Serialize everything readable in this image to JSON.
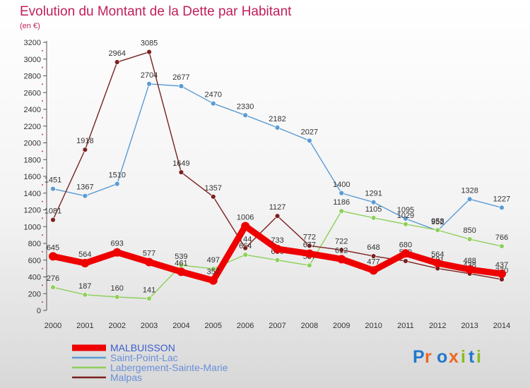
{
  "chart_data": {
    "type": "line",
    "title": "Evolution du Montant de la Dette par Habitant",
    "subtitle": "(en €)",
    "x": [
      "2000",
      "2001",
      "2002",
      "2003",
      "2004",
      "2005",
      "2006",
      "2007",
      "2008",
      "2009",
      "2010",
      "2011",
      "2012",
      "2013",
      "2014"
    ],
    "ylim": [
      0,
      3200
    ],
    "yticks": [
      0,
      200,
      400,
      600,
      800,
      1000,
      1200,
      1400,
      1600,
      1800,
      2000,
      2200,
      2400,
      2600,
      2800,
      3000,
      3200
    ],
    "grid": false,
    "legend_position": "bottom-left",
    "series": [
      {
        "name": "MALBUISSON",
        "color": "#ee0000",
        "values": [
          645,
          564,
          693,
          577,
          461,
          357,
          1006,
          733,
          677,
          612,
          477,
          680,
          564,
          488,
          437
        ]
      },
      {
        "name": "Saint-Point-Lac",
        "color": "#5b9bd5",
        "values": [
          1451,
          1367,
          1510,
          2704,
          2677,
          2470,
          2330,
          2182,
          2027,
          1400,
          1291,
          1095,
          952,
          1328,
          1227
        ]
      },
      {
        "name": "Labergement-Sainte-Marie",
        "color": "#8ed05a",
        "values": [
          276,
          187,
          160,
          141,
          539,
          497,
          664,
          600,
          537,
          1186,
          1105,
          1029,
          958,
          850,
          766
        ]
      },
      {
        "name": "Malpas",
        "color": "#7b2020",
        "values": [
          1081,
          1918,
          2964,
          3085,
          1649,
          1357,
          744,
          1127,
          772,
          722,
          648,
          589,
          501,
          438,
          370
        ]
      }
    ]
  },
  "logo_text": "Proxiti"
}
